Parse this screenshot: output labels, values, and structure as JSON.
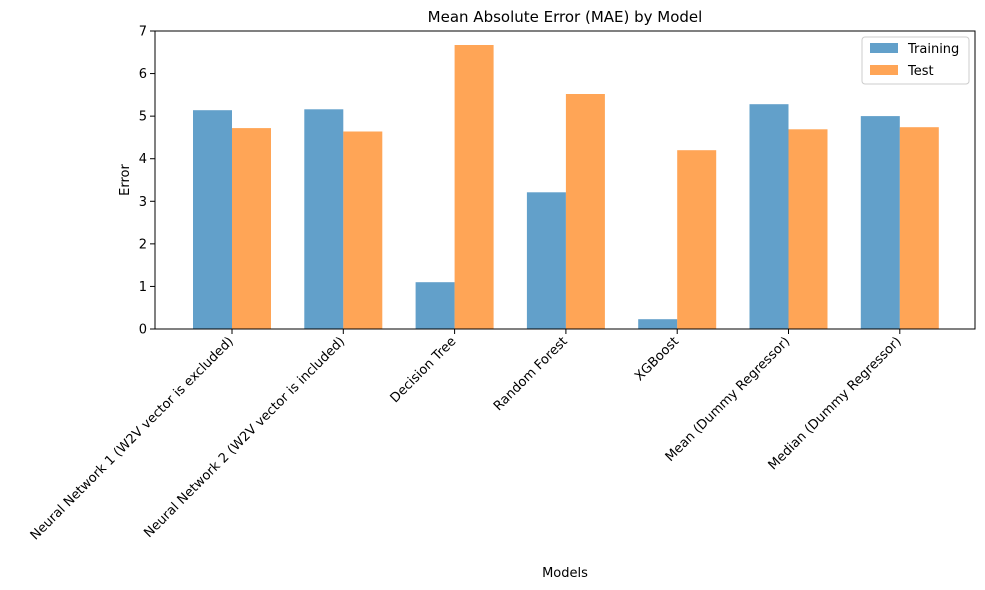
{
  "chart_data": {
    "type": "bar",
    "title": "Mean Absolute Error (MAE) by Model",
    "xlabel": "Models",
    "ylabel": "Error",
    "ylim": [
      0,
      7
    ],
    "yticks": [
      0,
      1,
      2,
      3,
      4,
      5,
      6,
      7
    ],
    "grid": false,
    "legend_position": "top-right",
    "categories": [
      "Neural Network 1 (W2V vector is excluded)",
      "Neural Network 2 (W2V vector is included)",
      "Decision Tree",
      "Random Forest",
      "XGBoost",
      "Mean (Dummy Regressor)",
      "Median (Dummy Regressor)"
    ],
    "series": [
      {
        "name": "Training",
        "color": "#1f77b4",
        "values": [
          5.14,
          5.16,
          1.1,
          3.21,
          0.23,
          5.28,
          5.0
        ]
      },
      {
        "name": "Test",
        "color": "#ff7f0e",
        "values": [
          4.72,
          4.64,
          6.67,
          5.52,
          4.2,
          4.69,
          4.74
        ]
      }
    ]
  }
}
